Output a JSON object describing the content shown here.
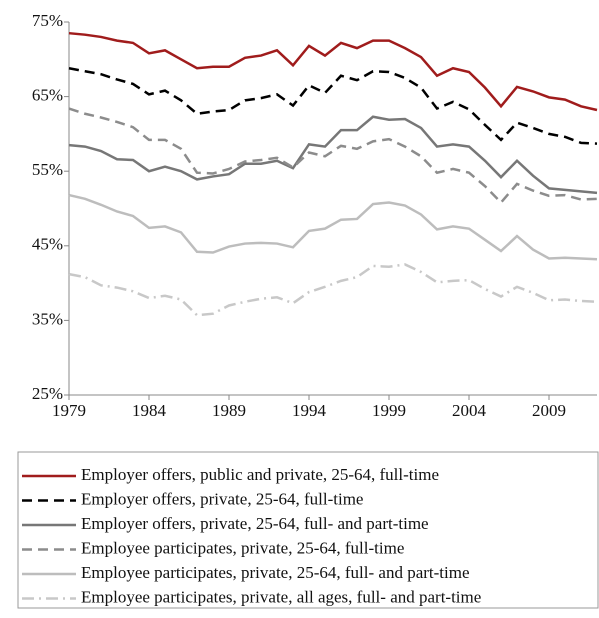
{
  "chart_data": {
    "type": "line",
    "x": [
      1979,
      1980,
      1981,
      1982,
      1983,
      1984,
      1985,
      1986,
      1987,
      1988,
      1989,
      1990,
      1991,
      1992,
      1993,
      1994,
      1995,
      1996,
      1997,
      1998,
      1999,
      2000,
      2001,
      2002,
      2003,
      2004,
      2005,
      2006,
      2007,
      2008,
      2009,
      2010,
      2011,
      2012
    ],
    "xlim": [
      1979,
      2012
    ],
    "xticks": [
      1979,
      1984,
      1989,
      1994,
      1999,
      2004,
      2009
    ],
    "ylim": [
      25,
      75
    ],
    "yticks": [
      {
        "value": 25,
        "label": "25%"
      },
      {
        "value": 35,
        "label": "35%"
      },
      {
        "value": 45,
        "label": "45%"
      },
      {
        "value": 55,
        "label": "55%"
      },
      {
        "value": 65,
        "label": "65%"
      },
      {
        "value": 75,
        "label": "75%"
      }
    ],
    "grid": false,
    "legend": "bottom",
    "series": [
      {
        "name": "Employer offers, public and private, 25-64, full-time",
        "color": "#a01c1c",
        "dash": "solid",
        "values": [
          73.5,
          73.3,
          73.0,
          72.5,
          72.2,
          70.8,
          71.2,
          70.0,
          68.8,
          69.0,
          69.0,
          70.2,
          70.5,
          71.2,
          69.2,
          71.8,
          70.5,
          72.2,
          71.5,
          72.5,
          72.5,
          71.5,
          70.3,
          67.8,
          68.8,
          68.3,
          66.2,
          63.7,
          66.3,
          65.7,
          64.9,
          64.6,
          63.7,
          63.2
        ]
      },
      {
        "name": "Employer offers, private, 25-64, full-time",
        "color": "#000000",
        "dash": "dashed",
        "values": [
          68.8,
          68.4,
          68.0,
          67.3,
          66.7,
          65.3,
          65.8,
          64.5,
          62.7,
          63.0,
          63.2,
          64.5,
          64.8,
          65.3,
          63.8,
          66.5,
          65.5,
          67.8,
          67.2,
          68.4,
          68.3,
          67.5,
          66.2,
          63.4,
          64.3,
          63.3,
          61.2,
          59.2,
          61.5,
          60.8,
          60.0,
          59.6,
          58.8,
          58.7
        ]
      },
      {
        "name": "Employer offers, private, 25-64, full- and part-time",
        "color": "#777777",
        "dash": "solid",
        "values": [
          58.5,
          58.3,
          57.7,
          56.6,
          56.5,
          55.0,
          55.6,
          55.0,
          53.9,
          54.3,
          54.6,
          56.0,
          56.0,
          56.4,
          55.4,
          58.6,
          58.3,
          60.5,
          60.5,
          62.3,
          61.9,
          62.0,
          60.8,
          58.3,
          58.6,
          58.3,
          56.4,
          54.2,
          56.4,
          54.4,
          52.7,
          52.5,
          52.3,
          52.1
        ]
      },
      {
        "name": "Employee participates, private, 25-64, full-time",
        "color": "#8c8c8c",
        "dash": "dashed",
        "values": [
          63.4,
          62.7,
          62.2,
          61.6,
          60.9,
          59.2,
          59.2,
          58.0,
          54.8,
          54.7,
          55.3,
          56.3,
          56.5,
          56.8,
          55.5,
          57.5,
          57.0,
          58.4,
          58.0,
          59.0,
          59.3,
          58.3,
          57.0,
          54.8,
          55.3,
          54.8,
          53.0,
          50.8,
          53.3,
          52.4,
          51.7,
          51.8,
          51.2,
          51.3
        ]
      },
      {
        "name": "Employee participates, private, 25-64, full- and part-time",
        "color": "#bdbdbd",
        "dash": "solid",
        "values": [
          51.8,
          51.3,
          50.5,
          49.6,
          49.0,
          47.4,
          47.6,
          46.8,
          44.2,
          44.1,
          44.9,
          45.3,
          45.4,
          45.3,
          44.8,
          47.0,
          47.3,
          48.5,
          48.6,
          50.6,
          50.8,
          50.4,
          49.2,
          47.2,
          47.6,
          47.3,
          45.8,
          44.3,
          46.3,
          44.5,
          43.3,
          43.4,
          43.3,
          43.2
        ]
      },
      {
        "name": "Employee participates, private, all ages, full- and part-time",
        "color": "#c8c8c8",
        "dash": "dashdot",
        "values": [
          41.2,
          40.8,
          39.7,
          39.4,
          38.9,
          38.0,
          38.3,
          37.8,
          35.7,
          35.9,
          37.0,
          37.5,
          37.9,
          38.1,
          37.3,
          38.8,
          39.5,
          40.3,
          40.8,
          42.3,
          42.2,
          42.5,
          41.5,
          40.1,
          40.3,
          40.4,
          39.2,
          38.2,
          39.5,
          38.7,
          37.7,
          37.8,
          37.6,
          37.5
        ]
      }
    ]
  }
}
